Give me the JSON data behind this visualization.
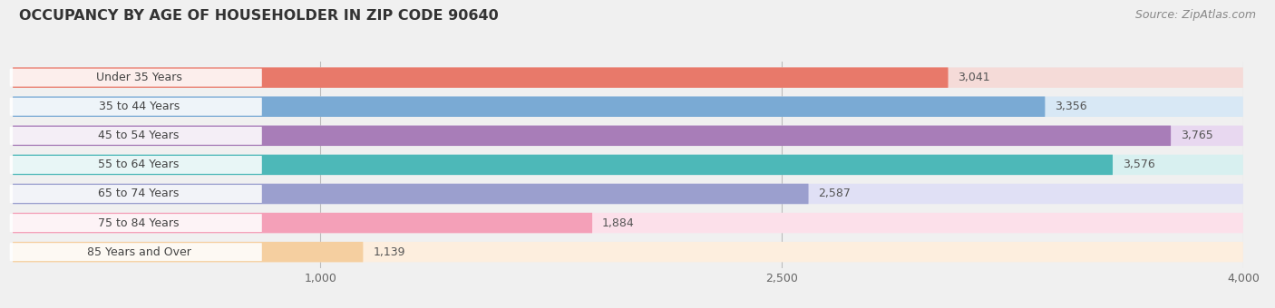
{
  "title": "OCCUPANCY BY AGE OF HOUSEHOLDER IN ZIP CODE 90640",
  "source": "Source: ZipAtlas.com",
  "categories": [
    "Under 35 Years",
    "35 to 44 Years",
    "45 to 54 Years",
    "55 to 64 Years",
    "65 to 74 Years",
    "75 to 84 Years",
    "85 Years and Over"
  ],
  "values": [
    3041,
    3356,
    3765,
    3576,
    2587,
    1884,
    1139
  ],
  "bar_colors": [
    "#e8796a",
    "#7aaad4",
    "#a87db8",
    "#4db8b8",
    "#9b9fce",
    "#f4a0b8",
    "#f5cfa0"
  ],
  "bar_bg_colors": [
    "#f5dbd8",
    "#d8e8f5",
    "#e8d8f0",
    "#d8f0f0",
    "#e0e0f5",
    "#fce0ea",
    "#fdeede"
  ],
  "xlim_min": 0,
  "xlim_max": 4000,
  "xticks": [
    1000,
    2500,
    4000
  ],
  "title_fontsize": 11.5,
  "label_fontsize": 9,
  "value_fontsize": 9,
  "source_fontsize": 9,
  "bar_height": 0.7,
  "bar_gap": 1.0,
  "background_color": "#f0f0f0",
  "rounding_size": 0.25
}
